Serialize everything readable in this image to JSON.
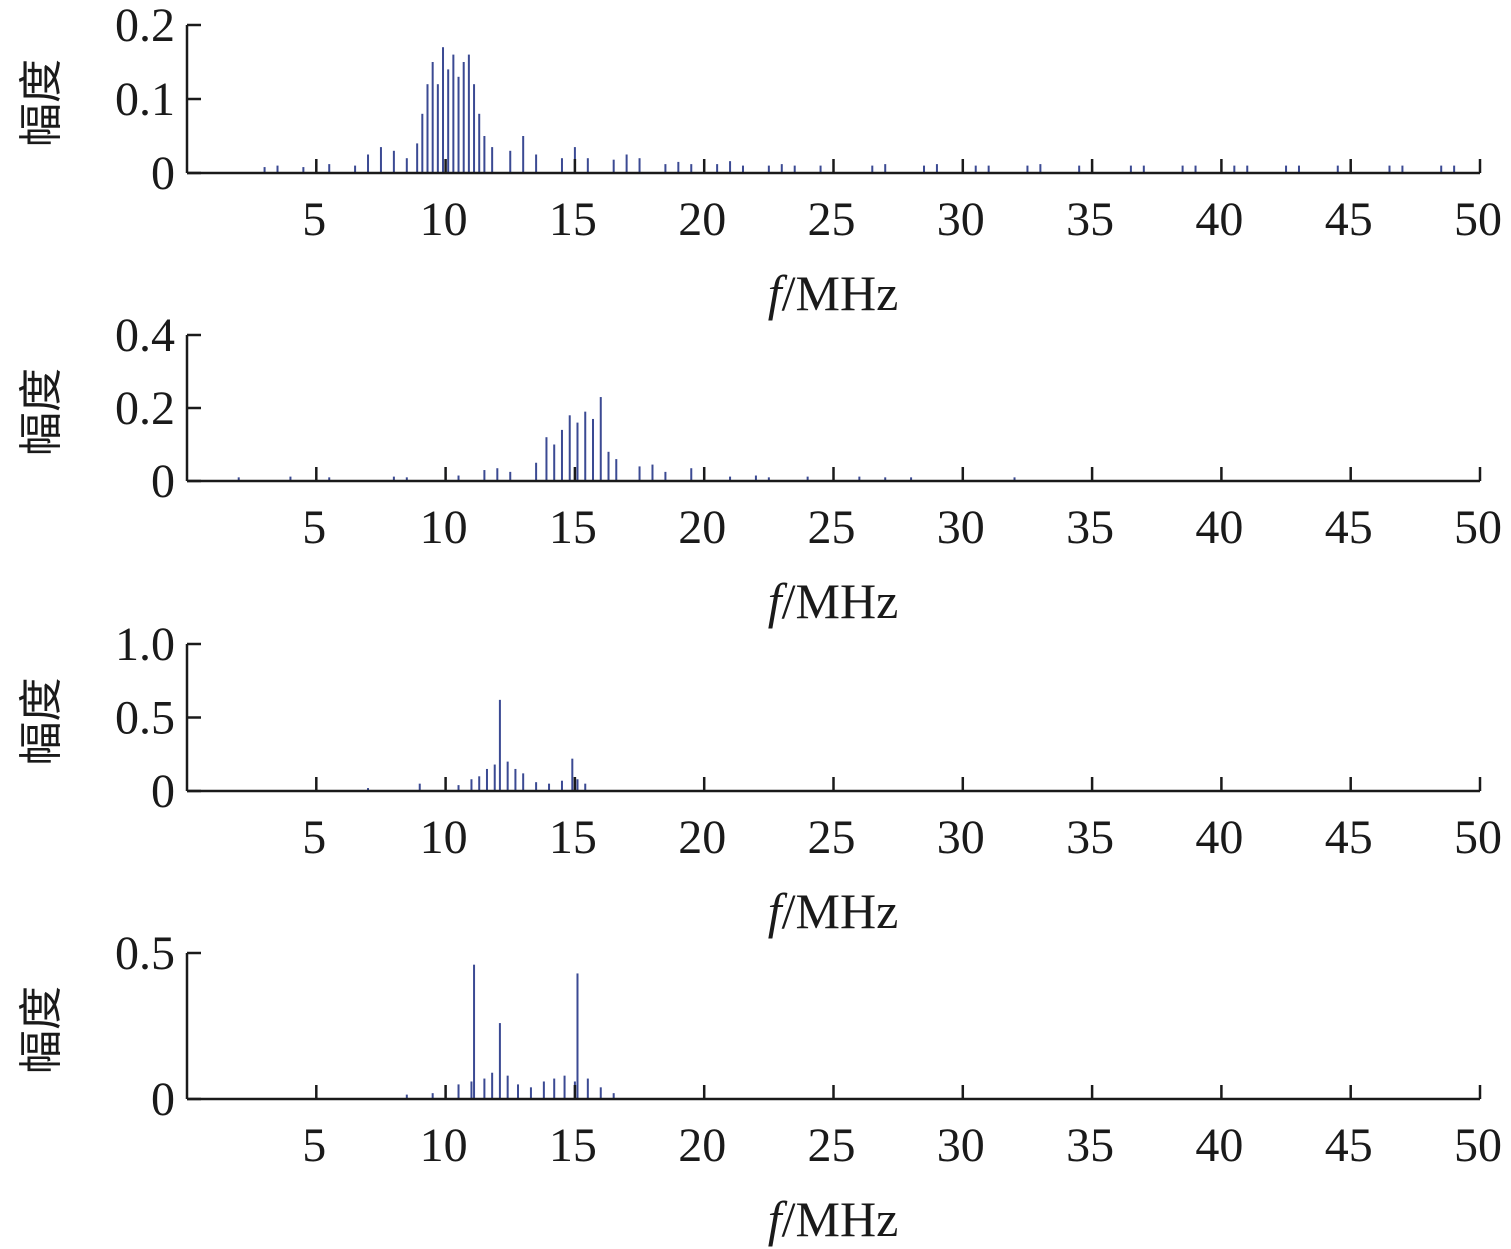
{
  "chart_data": [
    {
      "type": "bar",
      "ylabel": "幅度",
      "xlabel_italic": "f",
      "xlabel_unit": "/MHz",
      "xlim": [
        0,
        50
      ],
      "ylim": [
        0,
        0.2
      ],
      "xticks": [
        5,
        10,
        15,
        20,
        25,
        30,
        35,
        40,
        45,
        50
      ],
      "xtick_labels": [
        "5",
        "10",
        "15",
        "20",
        "25",
        "30",
        "35",
        "40",
        "45",
        "50"
      ],
      "yticks": [
        0,
        0.1,
        0.2
      ],
      "ytick_labels": [
        "0",
        "0.1",
        "0.2"
      ],
      "grid": false,
      "series": [
        {
          "color": "#3b4a93",
          "x": [
            3.0,
            3.5,
            4.5,
            5.0,
            5.5,
            6.5,
            7.0,
            7.5,
            8.0,
            8.5,
            8.9,
            9.1,
            9.3,
            9.5,
            9.7,
            9.9,
            10.1,
            10.3,
            10.5,
            10.7,
            10.9,
            11.1,
            11.3,
            11.5,
            11.8,
            12.5,
            13.0,
            13.5,
            14.5,
            15.0,
            15.5,
            16.5,
            17.0,
            17.5,
            18.5,
            19.0,
            19.5,
            20.5,
            21.0,
            21.5,
            22.5,
            23.0,
            23.5,
            24.5,
            25.0,
            26.5,
            27.0,
            28.5,
            29.0,
            30.5,
            31.0,
            32.5,
            33.0,
            34.5,
            35.0,
            36.5,
            37.0,
            38.5,
            39.0,
            40.5,
            41.0,
            42.5,
            43.0,
            44.5,
            45.0,
            46.5,
            47.0,
            48.5,
            49.0
          ],
          "y": [
            0.008,
            0.01,
            0.008,
            0.015,
            0.012,
            0.01,
            0.025,
            0.035,
            0.03,
            0.02,
            0.04,
            0.08,
            0.12,
            0.15,
            0.12,
            0.17,
            0.14,
            0.16,
            0.13,
            0.15,
            0.16,
            0.12,
            0.08,
            0.05,
            0.035,
            0.03,
            0.05,
            0.025,
            0.02,
            0.035,
            0.02,
            0.018,
            0.025,
            0.02,
            0.012,
            0.015,
            0.012,
            0.012,
            0.016,
            0.01,
            0.01,
            0.012,
            0.01,
            0.01,
            0.012,
            0.01,
            0.012,
            0.01,
            0.012,
            0.01,
            0.01,
            0.01,
            0.012,
            0.01,
            0.01,
            0.01,
            0.01,
            0.01,
            0.01,
            0.01,
            0.01,
            0.01,
            0.01,
            0.01,
            0.01,
            0.01,
            0.01,
            0.01,
            0.01
          ]
        }
      ]
    },
    {
      "type": "bar",
      "ylabel": "幅度",
      "xlabel_italic": "f",
      "xlabel_unit": "/MHz",
      "xlim": [
        0,
        50
      ],
      "ylim": [
        0,
        0.4
      ],
      "xticks": [
        5,
        10,
        15,
        20,
        25,
        30,
        35,
        40,
        45,
        50
      ],
      "xtick_labels": [
        "5",
        "10",
        "15",
        "20",
        "25",
        "30",
        "35",
        "40",
        "45",
        "50"
      ],
      "yticks": [
        0,
        0.2,
        0.4
      ],
      "ytick_labels": [
        "0",
        "0.2",
        "0.4"
      ],
      "grid": false,
      "series": [
        {
          "color": "#3b4a93",
          "x": [
            2.0,
            4.0,
            5.5,
            8.0,
            8.5,
            10.0,
            10.5,
            11.5,
            12.0,
            12.5,
            13.5,
            13.9,
            14.2,
            14.5,
            14.8,
            15.1,
            15.4,
            15.7,
            16.0,
            16.3,
            16.6,
            17.5,
            18.0,
            18.5,
            19.5,
            20.0,
            21.0,
            22.0,
            22.5,
            24.0,
            25.0,
            26.0,
            27.0,
            28.0,
            30.0,
            32.0
          ],
          "y": [
            0.01,
            0.012,
            0.01,
            0.012,
            0.01,
            0.02,
            0.015,
            0.03,
            0.035,
            0.025,
            0.05,
            0.12,
            0.1,
            0.14,
            0.18,
            0.16,
            0.19,
            0.17,
            0.23,
            0.08,
            0.06,
            0.04,
            0.045,
            0.025,
            0.035,
            0.03,
            0.012,
            0.015,
            0.01,
            0.012,
            0.01,
            0.012,
            0.01,
            0.01,
            0.01,
            0.01
          ]
        }
      ]
    },
    {
      "type": "bar",
      "ylabel": "幅度",
      "xlabel_italic": "f",
      "xlabel_unit": "/MHz",
      "xlim": [
        0,
        50
      ],
      "ylim": [
        0,
        1.0
      ],
      "xticks": [
        5,
        10,
        15,
        20,
        25,
        30,
        35,
        40,
        45,
        50
      ],
      "xtick_labels": [
        "5",
        "10",
        "15",
        "20",
        "25",
        "30",
        "35",
        "40",
        "45",
        "50"
      ],
      "yticks": [
        0,
        0.5,
        1.0
      ],
      "ytick_labels": [
        "0",
        "0.5",
        "1.0"
      ],
      "grid": false,
      "series": [
        {
          "color": "#3b4a93",
          "x": [
            7.0,
            9.0,
            10.5,
            11.0,
            11.3,
            11.6,
            11.9,
            12.1,
            12.4,
            12.7,
            13.0,
            13.5,
            14.0,
            14.5,
            14.9,
            15.1,
            15.4
          ],
          "y": [
            0.02,
            0.05,
            0.04,
            0.08,
            0.1,
            0.15,
            0.18,
            0.62,
            0.2,
            0.15,
            0.12,
            0.06,
            0.05,
            0.07,
            0.22,
            0.08,
            0.05
          ]
        }
      ]
    },
    {
      "type": "bar",
      "ylabel": "幅度",
      "xlabel_italic": "f",
      "xlabel_unit": "/MHz",
      "xlim": [
        0,
        50
      ],
      "ylim": [
        0,
        0.5
      ],
      "xticks": [
        5,
        10,
        15,
        20,
        25,
        30,
        35,
        40,
        45,
        50
      ],
      "xtick_labels": [
        "5",
        "10",
        "15",
        "20",
        "25",
        "30",
        "35",
        "40",
        "45",
        "50"
      ],
      "yticks": [
        0,
        0.5
      ],
      "ytick_labels": [
        "0",
        "0.5"
      ],
      "grid": false,
      "series": [
        {
          "color": "#3b4a93",
          "x": [
            8.5,
            9.5,
            10.0,
            10.5,
            11.0,
            11.1,
            11.5,
            11.8,
            12.1,
            12.4,
            12.8,
            13.3,
            13.8,
            14.2,
            14.6,
            15.0,
            15.1,
            15.5,
            16.0,
            16.5
          ],
          "y": [
            0.015,
            0.02,
            0.03,
            0.05,
            0.06,
            0.46,
            0.07,
            0.09,
            0.26,
            0.08,
            0.05,
            0.04,
            0.06,
            0.07,
            0.08,
            0.06,
            0.43,
            0.07,
            0.04,
            0.02
          ]
        }
      ]
    }
  ]
}
